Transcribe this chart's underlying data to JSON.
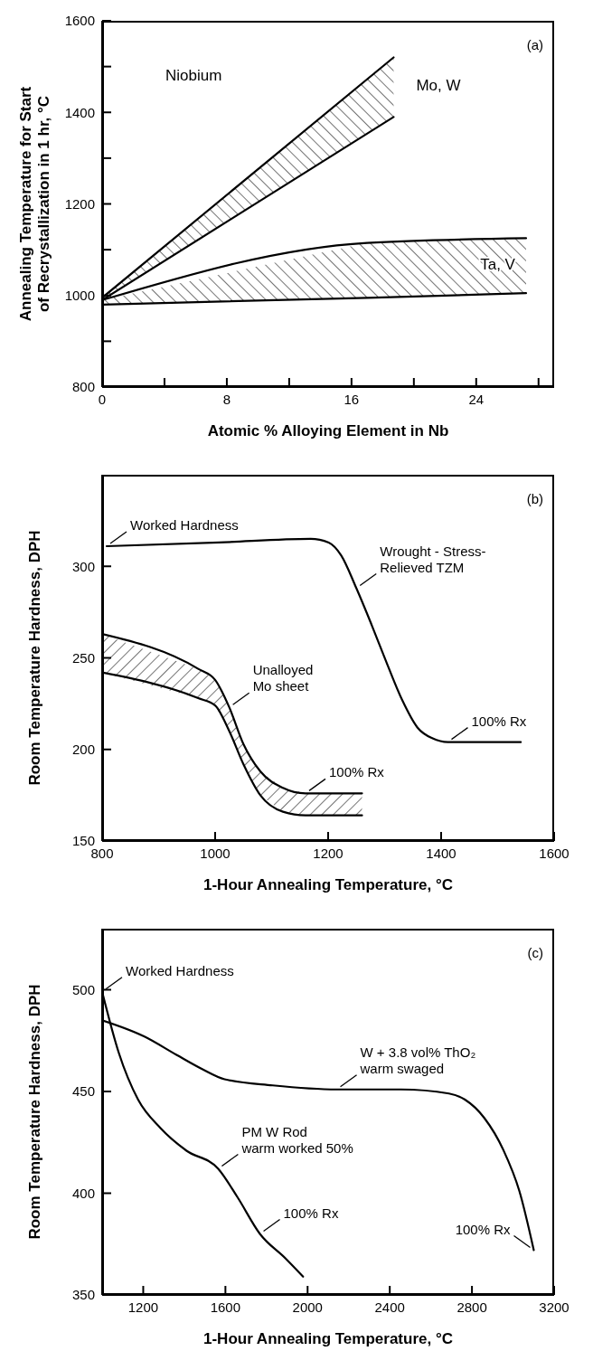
{
  "chart_data": [
    {
      "type": "line",
      "xlabel": "Atomic % Alloying Element in Nb",
      "ylabel": "Annealing Temperature for Start\nof Recrystallization in 1 hr, °C",
      "xlim": [
        0,
        29
      ],
      "xticks": [
        0,
        {
          "value": 4,
          "label": null
        },
        8,
        {
          "value": 12,
          "label": null
        },
        16,
        {
          "value": 20,
          "label": null
        },
        24,
        {
          "value": 28,
          "label": null
        }
      ],
      "ylim": [
        800,
        1600
      ],
      "yticks": [
        800,
        {
          "value": 900,
          "label": null
        },
        1000,
        {
          "value": 1100,
          "label": null
        },
        1200,
        {
          "value": 1300,
          "label": null
        },
        1400,
        {
          "value": 1500,
          "label": null
        },
        1600
      ],
      "series": [
        {
          "type": "area",
          "name": "Mo, W",
          "color": "#000000",
          "x": [
            0,
            18.7
          ],
          "values": [
            995,
            1520
          ]
        },
        {
          "color": "#000000",
          "x": [
            0,
            18.7
          ],
          "values": [
            990,
            1390
          ]
        },
        {
          "type": "area",
          "name": "Ta, V",
          "color": "#000000",
          "x": [
            0,
            17,
            27.2
          ],
          "values": [
            990,
            1115,
            1125
          ]
        },
        {
          "color": "#000000",
          "x": [
            0,
            17,
            27.2
          ],
          "values": [
            980,
            995,
            1005
          ]
        }
      ],
      "annotations": [
        "(a)",
        "Niobium"
      ]
    },
    {
      "type": "line",
      "xlabel": "1-Hour Annealing Temperature, °C",
      "ylabel": "Room Temperature Hardness, DPH",
      "xlim": [
        800,
        1600
      ],
      "xticks": [
        800,
        1000,
        1200,
        1400,
        1600
      ],
      "ylim": [
        150,
        350
      ],
      "yticks": [
        150,
        200,
        250,
        300
      ],
      "series": [
        {
          "color": "#000000",
          "x": [
            808,
            1007,
            1169,
            1201,
            1223,
            1250,
            1277,
            1304,
            1331,
            1358,
            1385,
            1412,
            1541
          ],
          "values": [
            311,
            313,
            315,
            313,
            306,
            288,
            268,
            247,
            227,
            212,
            206,
            204,
            204
          ]
        },
        {
          "type": "area",
          "color": "#000000",
          "x": [
            800,
            970,
            1000,
            1025,
            1050,
            1080,
            1120,
            1160,
            1260
          ],
          "values": [
            263,
            244,
            238,
            223,
            203,
            188,
            179,
            176,
            176
          ]
        },
        {
          "color": "#000000",
          "x": [
            800,
            970,
            1000,
            1025,
            1050,
            1080,
            1120,
            1160,
            1260
          ],
          "values": [
            242,
            228,
            224,
            210,
            192,
            175,
            166,
            164,
            164
          ]
        }
      ],
      "annotations": [
        "(b)",
        {
          "text": "Worked Hardness",
          "x": 808,
          "y": 311
        },
        {
          "text": "Wrought - Stress-\nRelieved TZM",
          "x": 1250,
          "y": 288
        },
        {
          "text": "Unalloyed\nMo sheet",
          "x": 1025,
          "y": 223
        },
        {
          "text": "100% Rx",
          "x": 1160,
          "y": 176
        },
        {
          "text": "100% Rx",
          "x": 1412,
          "y": 204
        }
      ]
    },
    {
      "type": "line",
      "xlabel": "1-Hour Annealing Temperature, °C",
      "ylabel": "Room Temperature Hardness, DPH",
      "xlim": [
        1000,
        3200
      ],
      "xticks": [
        1200,
        1600,
        2000,
        2400,
        2800,
        3200
      ],
      "ylim": [
        350,
        530
      ],
      "yticks": [
        350,
        400,
        450,
        500
      ],
      "series": [
        {
          "color": "#000000",
          "x": [
            1000,
            1206,
            1362,
            1487,
            1596,
            1830,
            2142,
            2454,
            2688,
            2766,
            2860,
            2954,
            3031,
            3101
          ],
          "values": [
            485,
            477,
            468,
            461,
            456,
            453,
            451,
            451,
            449,
            446,
            437,
            421,
            401,
            372
          ]
        },
        {
          "color": "#000000",
          "x": [
            1000,
            1081,
            1175,
            1284,
            1409,
            1565,
            1659,
            1768,
            1892,
            1978
          ],
          "values": [
            499,
            469,
            446,
            432,
            421,
            412,
            398,
            380,
            368,
            359
          ]
        }
      ],
      "annotations": [
        "(c)",
        {
          "text": "Worked Hardness",
          "x": 1000,
          "y": 499
        },
        {
          "text": "W + 3.8 vol% ThO₂\nwarm swaged",
          "x": 2142,
          "y": 451
        },
        {
          "text": "PM W Rod\nwarm worked 50%",
          "x": 1565,
          "y": 412
        },
        {
          "text": "100% Rx",
          "x": 1768,
          "y": 380
        },
        {
          "text": "100% Rx",
          "x": 3101,
          "y": 372
        }
      ]
    }
  ]
}
